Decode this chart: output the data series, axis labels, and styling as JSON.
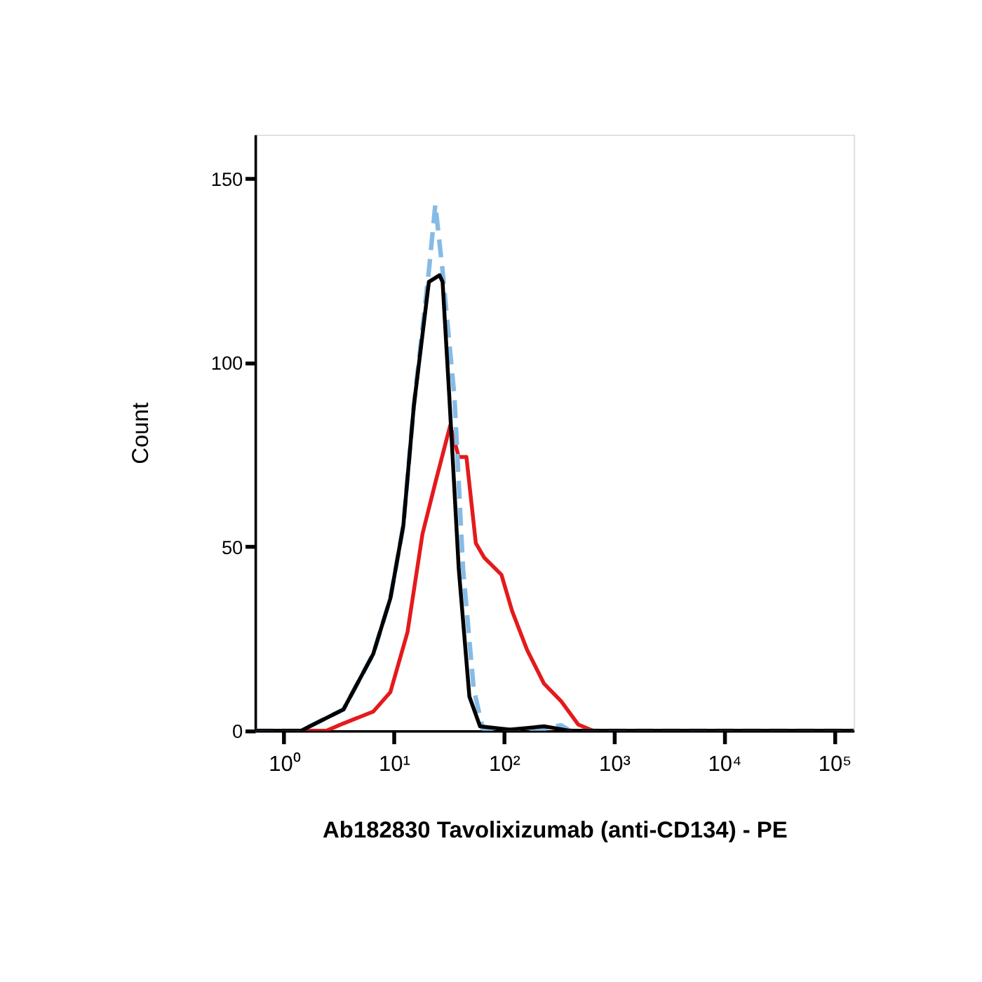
{
  "chart_data": {
    "type": "line",
    "xlabel": "Ab182830 Tavolixizumab (anti-CD134) - PE",
    "ylabel": "Count",
    "log": "x",
    "grid": false,
    "xlim": [
      0.55,
      150000
    ],
    "ylim": [
      0,
      162
    ],
    "xticks": [
      {
        "value": 1,
        "label": "10⁰"
      },
      {
        "value": 10,
        "label": "10¹"
      },
      {
        "value": 100,
        "label": "10²"
      },
      {
        "value": 1000,
        "label": "10³"
      },
      {
        "value": 10000,
        "label": "10⁴"
      },
      {
        "value": 100000,
        "label": "10⁵"
      }
    ],
    "yticks": [
      0,
      50,
      100,
      150
    ],
    "series": [
      {
        "color": "#e41a1c",
        "line_style": "solid",
        "x": [
          0.55,
          2.44,
          3.49,
          6.5,
          9.3,
          13.3,
          18.2,
          23.8,
          32.5,
          38.8,
          45.6,
          55.5,
          66.4,
          94.8,
          118.6,
          162,
          231,
          331,
          472,
          646,
          150000
        ],
        "values": [
          0,
          0,
          2,
          5.2,
          10.5,
          26.8,
          53.5,
          67.4,
          83,
          74.4,
          74.4,
          51,
          47,
          42.4,
          32.5,
          22,
          12.8,
          8,
          1.7,
          0,
          0
        ]
      },
      {
        "color": "#85bbe6",
        "line_style": "dashed",
        "x": [
          0.55,
          1.43,
          3.49,
          6.5,
          9.3,
          12.2,
          15.2,
          20.8,
          23.8,
          27.7,
          35.5,
          42.5,
          53,
          64,
          113,
          231,
          330,
          398,
          150000
        ],
        "values": [
          0,
          0,
          5.8,
          20.9,
          36,
          55.8,
          88.4,
          125,
          143,
          125,
          90.7,
          44,
          11.6,
          0.6,
          0.3,
          0.5,
          1.5,
          0,
          0
        ]
      },
      {
        "color": "#000000",
        "line_style": "solid",
        "x": [
          0.55,
          1.43,
          3.49,
          6.5,
          9.3,
          12.2,
          15.2,
          20.8,
          26,
          27.7,
          31.9,
          38.8,
          48.5,
          60.6,
          113,
          231,
          398,
          150000
        ],
        "values": [
          0,
          0,
          5.8,
          20.9,
          36,
          55.8,
          88.4,
          122,
          123.8,
          122,
          90.7,
          44.2,
          9.3,
          1.2,
          0.3,
          1.2,
          0,
          0
        ]
      }
    ]
  }
}
